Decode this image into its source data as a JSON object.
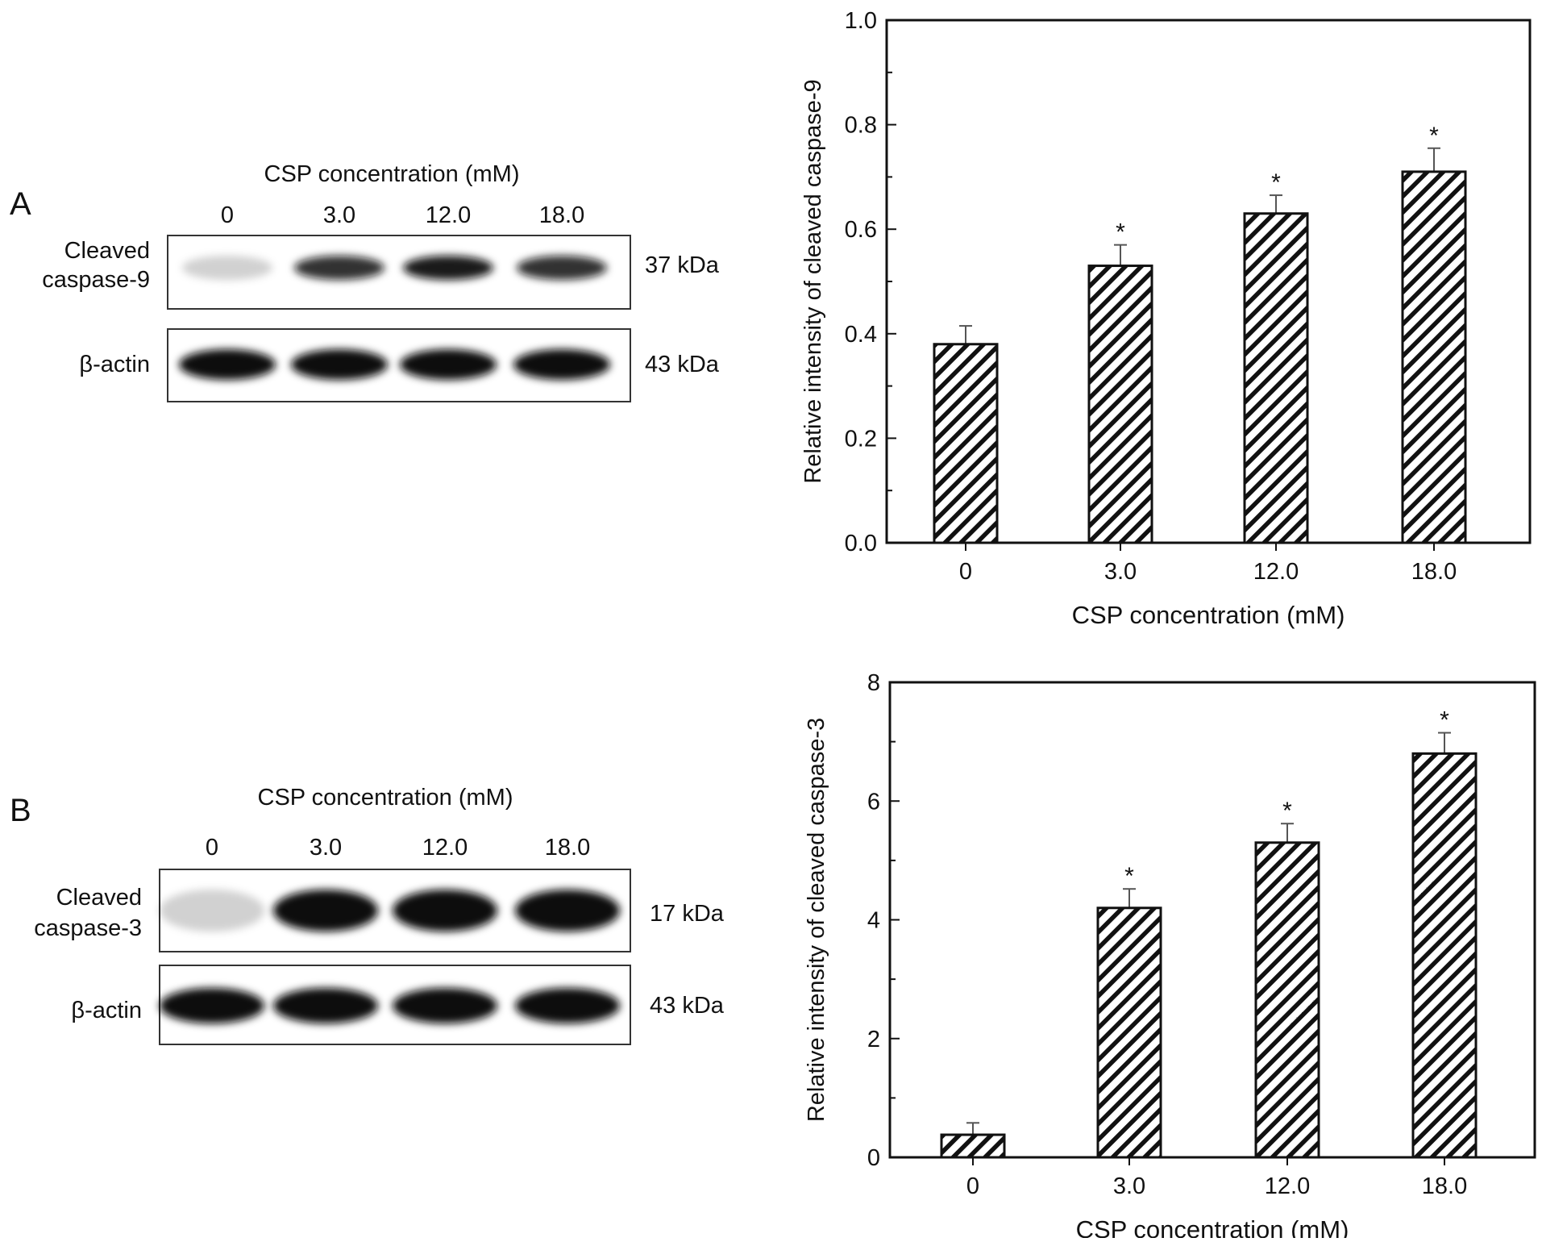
{
  "panels": [
    {
      "letter": "A",
      "blot": {
        "header": "CSP concentration (mM)",
        "lanes": [
          "0",
          "3.0",
          "12.0",
          "18.0"
        ],
        "rows": [
          {
            "label_lines": [
              "Cleaved",
              "caspase-9"
            ],
            "size": "37 kDa",
            "intensity": [
              0.18,
              0.85,
              0.95,
              0.85
            ]
          },
          {
            "label_lines": [
              "β-actin"
            ],
            "size": "43 kDa",
            "intensity": [
              1,
              1,
              1,
              1
            ]
          }
        ]
      }
    },
    {
      "letter": "B",
      "blot": {
        "header": "CSP concentration (mM)",
        "lanes": [
          "0",
          "3.0",
          "12.0",
          "18.0"
        ],
        "rows": [
          {
            "label_lines": [
              "Cleaved",
              "caspase-3"
            ],
            "size": "17 kDa",
            "intensity": [
              0.18,
              1,
              1,
              1
            ]
          },
          {
            "label_lines": [
              "β-actin"
            ],
            "size": "43 kDa",
            "intensity": [
              1,
              1,
              1,
              1
            ]
          }
        ]
      }
    }
  ],
  "chart_data": [
    {
      "type": "bar",
      "pattern": "diagonal-hatch",
      "categories": [
        "0",
        "3.0",
        "12.0",
        "18.0"
      ],
      "values": [
        0.38,
        0.53,
        0.63,
        0.71
      ],
      "errors": [
        0.035,
        0.04,
        0.035,
        0.045
      ],
      "significance": [
        "",
        "*",
        "*",
        "*"
      ],
      "xlabel": "CSP concentration (mM)",
      "ylabel": "Relative intensity of cleaved caspase-9",
      "ylim": [
        0,
        1.0
      ],
      "yticks": [
        "0.0",
        "0.2",
        "0.4",
        "0.6",
        "0.8",
        "1.0"
      ]
    },
    {
      "type": "bar",
      "pattern": "diagonal-hatch",
      "categories": [
        "0",
        "3.0",
        "12.0",
        "18.0"
      ],
      "values": [
        0.38,
        4.2,
        5.3,
        6.8
      ],
      "errors": [
        0.2,
        0.32,
        0.32,
        0.35
      ],
      "significance": [
        "",
        "*",
        "*",
        "*"
      ],
      "xlabel": "CSP concentration (mM)",
      "ylabel": "Relative intensity of cleaved caspase-3",
      "ylim": [
        0,
        8
      ],
      "yticks": [
        "0",
        "2",
        "4",
        "6",
        "8"
      ]
    }
  ]
}
